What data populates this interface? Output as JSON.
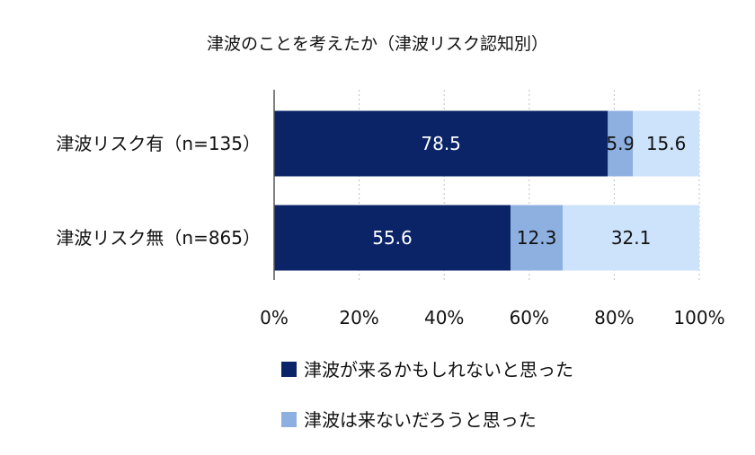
{
  "chart_data": {
    "type": "bar",
    "orientation": "horizontal",
    "stacked": true,
    "title": "津波のことを考えたか（津波リスク認知別）",
    "categories": [
      "津波リスク有（n=135）",
      "津波リスク無（n=865）"
    ],
    "series": [
      {
        "name": "津波が来るかもしれないと思った",
        "values": [
          78.5,
          55.6
        ],
        "labels": [
          "78.5",
          "55.6"
        ],
        "color": "#0a2467",
        "label_color": "#ffffff"
      },
      {
        "name": "津波は来ないだろうと思った",
        "values": [
          5.9,
          12.3
        ],
        "labels": [
          "5.9",
          "12.3"
        ],
        "color": "#8db0e0",
        "label_color": "#111111"
      },
      {
        "name": "",
        "values": [
          15.6,
          32.1
        ],
        "labels": [
          "15.6",
          "32.1"
        ],
        "color": "#cce3fb",
        "label_color": "#111111"
      }
    ],
    "xlim": [
      0,
      100
    ],
    "xticks": [
      "0%",
      "20%",
      "40%",
      "60%",
      "80%",
      "100%"
    ],
    "grid": "vertical dotted",
    "legend_position": "bottom"
  }
}
